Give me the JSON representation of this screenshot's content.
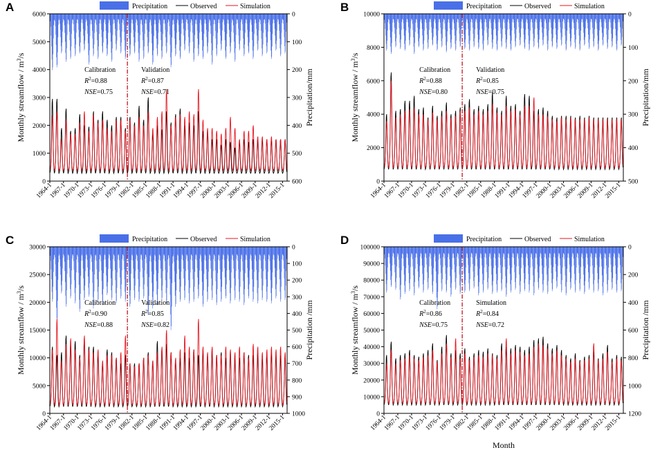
{
  "legend": {
    "precipitation": "Precipitation",
    "observed": "Observed",
    "simulation": "Simulation"
  },
  "colors": {
    "precipitation": "#4a70e8",
    "observed": "#000000",
    "simulation": "#e8141e",
    "divider": "#c0141e"
  },
  "xlabel_bottom": "Month",
  "chart_data": [
    {
      "type": "line",
      "panel": "A",
      "ylabel": "Monthly streamflow / m³/s",
      "ylabel_parts": [
        "Monthly streamflow / m",
        "3",
        "/s"
      ],
      "y2label": "Precipitation/mm",
      "ylim": [
        0,
        6000
      ],
      "yticks": [
        0,
        1000,
        2000,
        3000,
        4000,
        5000,
        6000
      ],
      "y2lim": [
        600,
        0
      ],
      "y2ticks": [
        0,
        100,
        200,
        300,
        400,
        500,
        600
      ],
      "x_range": [
        1964,
        2016
      ],
      "x_ticks": [
        "1964-1",
        "1967-1",
        "1970-1",
        "1973-1",
        "1976-1",
        "1979-1",
        "1982-1",
        "1985-1",
        "1988-1",
        "1991-1",
        "1994-1",
        "1997-1",
        "2000-1",
        "2003-1",
        "2006-1",
        "2009-1",
        "2012-1",
        "2015-1"
      ],
      "divider_year": 1981,
      "annotations": {
        "left": {
          "title": "Calibration",
          "r2": "0.88",
          "nse": "0.75"
        },
        "right": {
          "title": "Validation",
          "r2": "0.87",
          "nse": "0.71"
        }
      },
      "series": [
        {
          "name": "Observed",
          "base": 280,
          "peaks": [
            2950,
            2950,
            1900,
            2600,
            1800,
            1900,
            2400,
            2000,
            1950,
            2500,
            2200,
            2500,
            2200,
            2000,
            2300,
            2300,
            1900,
            2300,
            2100,
            2700,
            2200,
            3000,
            1700,
            2000,
            1850,
            2500,
            2100,
            2400,
            2600,
            2000,
            2100,
            2000,
            2500,
            1800,
            1800,
            1500,
            1500,
            1300,
            1500,
            1400,
            1200,
            1400,
            1500,
            1400,
            1500,
            1500,
            1500,
            1500,
            1500,
            1500,
            1500,
            1500
          ]
        },
        {
          "name": "Simulation",
          "base": 380,
          "peaks": [
            2350,
            2500,
            1500,
            2200,
            1700,
            1700,
            2100,
            2500,
            1800,
            2400,
            2100,
            2200,
            1900,
            1800,
            2200,
            2200,
            1800,
            2200,
            2000,
            2300,
            2000,
            2500,
            1900,
            2300,
            2500,
            3300,
            2000,
            2300,
            2400,
            2300,
            2500,
            2400,
            3300,
            2200,
            1900,
            1900,
            1800,
            1700,
            1900,
            2300,
            1900,
            1500,
            1800,
            1800,
            2000,
            1600,
            1600,
            1500,
            1600,
            1500,
            1500,
            1500
          ]
        },
        {
          "name": "Precipitation",
          "base": 12,
          "peaks": [
            190,
            180,
            130,
            160,
            150,
            140,
            130,
            120,
            170,
            140,
            150,
            130,
            140,
            160,
            120,
            130,
            150,
            140,
            130,
            160,
            150,
            130,
            170,
            140,
            150,
            130,
            180,
            140,
            150,
            120,
            130,
            160,
            140,
            150,
            130,
            170,
            140,
            120,
            150,
            130,
            160,
            120,
            140,
            130,
            150,
            120,
            140,
            130,
            150,
            120,
            140,
            130
          ]
        }
      ]
    },
    {
      "type": "line",
      "panel": "B",
      "ylabel": "Monthly streamflow / m³/s",
      "ylabel_parts": [
        "Monthly streamflow / m",
        "3",
        "/s"
      ],
      "y2label": "Precipitation/mm",
      "ylim": [
        0,
        10000
      ],
      "yticks": [
        0,
        2000,
        4000,
        6000,
        8000,
        10000
      ],
      "y2lim": [
        500,
        0
      ],
      "y2ticks": [
        0,
        100,
        200,
        300,
        400,
        500
      ],
      "x_range": [
        1964,
        2016
      ],
      "x_ticks": [
        "1964-1",
        "1967-1",
        "1970-1",
        "1973-1",
        "1976-1",
        "1979-1",
        "1982-1",
        "1985-1",
        "1988-1",
        "1991-1",
        "1994-1",
        "1997-1",
        "2000-1",
        "2003-1",
        "2006-1",
        "2009-1",
        "2012-1",
        "2015-1"
      ],
      "divider_year": 1981,
      "annotations": {
        "left": {
          "title": "Calibration",
          "r2": "0.88",
          "nse": "0.80"
        },
        "right": {
          "title": "Validation",
          "r2": "0.85",
          "nse": "0.75"
        }
      },
      "series": [
        {
          "name": "Observed",
          "base": 700,
          "peaks": [
            4000,
            6500,
            4200,
            4300,
            4800,
            4800,
            5100,
            4300,
            4400,
            3800,
            4500,
            3900,
            4200,
            4700,
            4000,
            4200,
            4400,
            4600,
            4900,
            4300,
            4500,
            4300,
            4600,
            5300,
            4400,
            4200,
            5100,
            4500,
            4600,
            4200,
            5200,
            5100,
            4200,
            4300,
            4400,
            4200,
            3900,
            3800,
            3900,
            3900,
            3900,
            3800,
            3900,
            3800,
            3900,
            3800,
            3800,
            3800,
            3800,
            3800,
            3800,
            3800
          ]
        },
        {
          "name": "Simulation",
          "base": 800,
          "peaks": [
            3600,
            6000,
            3800,
            4000,
            4200,
            4300,
            4400,
            4000,
            4000,
            3700,
            4100,
            3700,
            3900,
            4200,
            3800,
            3900,
            4200,
            4200,
            4400,
            4000,
            4200,
            4000,
            4200,
            4600,
            4100,
            4000,
            4500,
            4200,
            4300,
            4000,
            4500,
            4500,
            5000,
            4000,
            4000,
            3900,
            3700,
            3600,
            3800,
            3700,
            3800,
            3700,
            3700,
            3700,
            3800,
            3700,
            3700,
            3700,
            3700,
            3700,
            3700,
            3700
          ]
        },
        {
          "name": "Precipitation",
          "base": 10,
          "peaks": [
            100,
            110,
            90,
            95,
            100,
            85,
            110,
            90,
            100,
            95,
            85,
            100,
            90,
            105,
            95,
            100,
            90,
            95,
            100,
            90,
            95,
            100,
            85,
            95,
            100,
            90,
            95,
            100,
            90,
            85,
            95,
            100,
            90,
            95,
            85,
            100,
            90,
            95,
            85,
            100,
            90,
            95,
            100,
            85,
            95,
            90,
            100,
            85,
            95,
            90,
            100,
            85
          ]
        }
      ]
    },
    {
      "type": "line",
      "panel": "C",
      "ylabel": "Monthly streamflow / m³/s",
      "ylabel_parts": [
        "Monthly streamflow / m",
        "3",
        "/s"
      ],
      "y2label": "Precipitation /mm",
      "ylim": [
        0,
        30000
      ],
      "yticks": [
        0,
        5000,
        10000,
        15000,
        20000,
        25000,
        30000
      ],
      "y2lim": [
        1000,
        0
      ],
      "y2ticks": [
        0,
        100,
        200,
        300,
        400,
        500,
        600,
        700,
        800,
        900,
        1000
      ],
      "x_range": [
        1964,
        2016
      ],
      "x_ticks": [
        "1964-1",
        "1967-1",
        "1970-1",
        "1973-1",
        "1976-1",
        "1979-1",
        "1982-1",
        "1985-1",
        "1988-1",
        "1991-1",
        "1994-1",
        "1997-1",
        "2000-1",
        "2003-1",
        "2006-1",
        "2009-1",
        "2012-1",
        "2015-1"
      ],
      "divider_year": 1981,
      "annotations": {
        "left": {
          "title": "Calibration",
          "r2": "0.90",
          "nse": "0.88"
        },
        "right": {
          "title": "Validation",
          "r2": "0.85",
          "nse": "0.82"
        }
      },
      "series": [
        {
          "name": "Observed",
          "base": 1200,
          "peaks": [
            12000,
            10500,
            11000,
            14000,
            12500,
            13000,
            10500,
            13500,
            12000,
            12000,
            10500,
            9000,
            11500,
            11000,
            10000,
            9000,
            10500,
            9000,
            9000,
            9000,
            10000,
            11000,
            9500,
            13000,
            11500,
            12500,
            11000,
            9500,
            10000,
            11000,
            10000,
            11500,
            10500,
            11500,
            10500,
            11500,
            10500,
            11000,
            10000,
            11000,
            10500,
            10000,
            11000,
            10500,
            10500,
            11000,
            10000,
            10500,
            11000,
            10500,
            10500,
            10500
          ]
        },
        {
          "name": "Simulation",
          "base": 1500,
          "peaks": [
            11500,
            17000,
            9500,
            12500,
            13500,
            11500,
            10000,
            14000,
            11500,
            11000,
            11500,
            9500,
            10500,
            10500,
            10000,
            11000,
            14000,
            9000,
            8500,
            9000,
            10000,
            10500,
            9500,
            11000,
            12000,
            15000,
            11000,
            10000,
            11500,
            14000,
            12000,
            11500,
            17000,
            12000,
            11000,
            12000,
            10500,
            10500,
            12000,
            11500,
            11000,
            12000,
            11000,
            10000,
            12500,
            12000,
            11000,
            11500,
            12000,
            11500,
            12000,
            11000
          ]
        },
        {
          "name": "Precipitation",
          "base": 30,
          "peaks": [
            300,
            420,
            250,
            330,
            280,
            310,
            360,
            290,
            270,
            340,
            300,
            320,
            260,
            290,
            310,
            280,
            300,
            330,
            290,
            300,
            280,
            380,
            340,
            320,
            290,
            310,
            470,
            330,
            300,
            290,
            310,
            300,
            280,
            330,
            300,
            290,
            320,
            300,
            280,
            310,
            290,
            300,
            320,
            280,
            300,
            310,
            290,
            300,
            310,
            280,
            300,
            290
          ]
        }
      ]
    },
    {
      "type": "line",
      "panel": "D",
      "ylabel": "Monthly streamflow / m³/s",
      "ylabel_parts": [
        "Monthly streamflow / m",
        "3",
        "/s"
      ],
      "y2label": "Precipitation /mm",
      "xlabel": "Month",
      "ylim": [
        0,
        100000
      ],
      "yticks": [
        0,
        10000,
        20000,
        30000,
        40000,
        50000,
        60000,
        70000,
        80000,
        90000,
        100000
      ],
      "y2lim": [
        1200,
        0
      ],
      "y2ticks": [
        0,
        200,
        400,
        600,
        800,
        1000,
        1200
      ],
      "x_range": [
        1964,
        2016
      ],
      "x_ticks": [
        "1964-1",
        "1967-1",
        "1970-1",
        "1973-1",
        "1976-1",
        "1979-1",
        "1982-1",
        "1985-1",
        "1988-1",
        "1991-1",
        "1994-1",
        "1997-1",
        "2000-1",
        "2003-1",
        "2006-1",
        "2009-1",
        "2012-1",
        "2015-1"
      ],
      "divider_year": 1981,
      "annotations": {
        "left": {
          "title": "Calibration",
          "r2": "0.86",
          "nse": "0.75"
        },
        "right": {
          "title": "Simulation",
          "r2": "0.84",
          "nse": "0.72"
        }
      },
      "series": [
        {
          "name": "Observed",
          "base": 5000,
          "peaks": [
            35000,
            43000,
            33000,
            35000,
            36000,
            38000,
            35000,
            34000,
            36000,
            38000,
            42000,
            32000,
            40000,
            47000,
            36000,
            38000,
            36000,
            39000,
            34000,
            36000,
            38000,
            37000,
            39000,
            36000,
            35000,
            42000,
            40000,
            39000,
            41000,
            40000,
            38000,
            40000,
            44000,
            45000,
            46000,
            42000,
            39000,
            41000,
            38000,
            35000,
            33000,
            36000,
            32000,
            34000,
            35000,
            38000,
            33000,
            36000,
            41000,
            33000,
            35000,
            34000
          ]
        },
        {
          "name": "Simulation",
          "base": 6000,
          "peaks": [
            30000,
            38000,
            30000,
            32000,
            33000,
            35000,
            33000,
            32000,
            34000,
            35000,
            38000,
            31000,
            36000,
            42000,
            34000,
            45000,
            33000,
            36000,
            32000,
            34000,
            35000,
            34000,
            36000,
            35000,
            33000,
            38000,
            45000,
            36000,
            38000,
            37000,
            35000,
            36000,
            40000,
            42000,
            41000,
            39000,
            36000,
            38000,
            35000,
            33000,
            31000,
            33000,
            31000,
            32000,
            33000,
            42000,
            32000,
            33000,
            37000,
            31000,
            33000,
            32000
          ]
        },
        {
          "name": "Precipitation",
          "base": 30,
          "peaks": [
            300,
            260,
            280,
            350,
            310,
            290,
            320,
            270,
            300,
            280,
            310,
            420,
            290,
            300,
            330,
            280,
            310,
            300,
            290,
            270,
            320,
            300,
            280,
            310,
            300,
            290,
            330,
            300,
            280,
            310,
            290,
            300,
            320,
            280,
            300,
            310,
            290,
            270,
            300,
            320,
            280,
            300,
            290,
            310,
            280,
            300,
            290,
            320,
            300,
            280,
            300,
            290
          ]
        }
      ]
    }
  ]
}
